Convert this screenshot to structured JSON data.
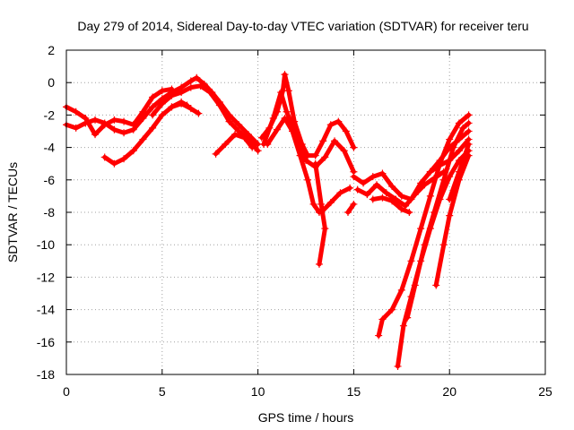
{
  "chart_data": {
    "type": "scatter",
    "title": "Day 279 of 2014, Sidereal Day-to-day VTEC variation (SDTVAR) for receiver teru",
    "xlabel": "GPS time / hours",
    "ylabel": "SDTVAR / TECUs",
    "xlim": [
      0,
      25
    ],
    "ylim": [
      -18,
      2
    ],
    "xticks": [
      "0",
      "5",
      "10",
      "15",
      "20",
      "25"
    ],
    "yticks": [
      "-18",
      "-16",
      "-14",
      "-12",
      "-10",
      "-8",
      "-6",
      "-4",
      "-2",
      "0",
      "2"
    ],
    "grid": true,
    "marker": "plus",
    "color": "#ff0000",
    "series": [
      {
        "points": [
          [
            0,
            -1.5
          ],
          [
            0.5,
            -1.8
          ],
          [
            1.0,
            -2.2
          ],
          [
            1.5,
            -3.2
          ],
          [
            2.0,
            -2.6
          ],
          [
            2.5,
            -2.3
          ],
          [
            3.0,
            -2.4
          ],
          [
            3.5,
            -2.6
          ],
          [
            4.0,
            -1.8
          ],
          [
            4.5,
            -0.9
          ],
          [
            5.0,
            -0.5
          ],
          [
            5.5,
            -0.4
          ]
        ]
      },
      {
        "points": [
          [
            0,
            -2.6
          ],
          [
            0.5,
            -2.8
          ],
          [
            1.0,
            -2.5
          ],
          [
            1.5,
            -2.3
          ],
          [
            2.0,
            -2.5
          ],
          [
            2.5,
            -2.9
          ],
          [
            3.0,
            -3.1
          ],
          [
            3.5,
            -2.9
          ],
          [
            4.0,
            -2.2
          ],
          [
            4.5,
            -1.5
          ],
          [
            5.0,
            -1.0
          ],
          [
            5.5,
            -0.6
          ],
          [
            6.0,
            -0.3
          ],
          [
            6.5,
            0.1
          ],
          [
            6.8,
            0.3
          ],
          [
            7.2,
            -0.1
          ],
          [
            7.6,
            -0.6
          ],
          [
            8.0,
            -1.2
          ],
          [
            8.5,
            -2.0
          ],
          [
            9.0,
            -2.6
          ],
          [
            9.5,
            -3.2
          ],
          [
            10.0,
            -3.8
          ]
        ]
      },
      {
        "points": [
          [
            2.0,
            -4.6
          ],
          [
            2.5,
            -5.0
          ],
          [
            3.0,
            -4.7
          ],
          [
            3.5,
            -4.2
          ],
          [
            4.0,
            -3.5
          ],
          [
            4.5,
            -2.8
          ],
          [
            5.0,
            -2.0
          ],
          [
            5.5,
            -1.5
          ],
          [
            6.0,
            -1.2
          ],
          [
            6.3,
            -1.4
          ]
        ]
      },
      {
        "points": [
          [
            4.5,
            -2.0
          ],
          [
            5.0,
            -1.3
          ],
          [
            5.5,
            -0.8
          ],
          [
            6.0,
            -0.6
          ],
          [
            6.5,
            -0.3
          ],
          [
            7.0,
            -0.2
          ],
          [
            7.5,
            -0.6
          ],
          [
            8.0,
            -1.4
          ],
          [
            8.5,
            -2.4
          ],
          [
            9.0,
            -3.0
          ],
          [
            9.5,
            -3.5
          ],
          [
            10.0,
            -4.2
          ]
        ]
      },
      {
        "points": [
          [
            5.5,
            -1.5
          ],
          [
            6.0,
            -1.3
          ],
          [
            6.5,
            -1.6
          ],
          [
            6.9,
            -1.9
          ]
        ]
      },
      {
        "points": [
          [
            7.8,
            -4.4
          ],
          [
            8.3,
            -3.8
          ],
          [
            8.8,
            -3.2
          ],
          [
            9.3,
            -3.4
          ],
          [
            9.7,
            -4.0
          ]
        ]
      },
      {
        "points": [
          [
            10.2,
            -3.4
          ],
          [
            10.6,
            -2.8
          ],
          [
            11.0,
            -1.8
          ],
          [
            11.3,
            -0.5
          ],
          [
            11.4,
            0.5
          ],
          [
            11.6,
            -0.5
          ],
          [
            11.9,
            -2.4
          ],
          [
            12.3,
            -3.8
          ],
          [
            12.6,
            -4.5
          ],
          [
            13.0,
            -4.5
          ],
          [
            13.4,
            -3.6
          ],
          [
            13.8,
            -2.6
          ],
          [
            14.2,
            -2.4
          ],
          [
            14.6,
            -3.0
          ],
          [
            15.0,
            -4.0
          ]
        ]
      },
      {
        "points": [
          [
            10.3,
            -3.8
          ],
          [
            10.8,
            -2.2
          ],
          [
            11.2,
            -0.6
          ],
          [
            11.5,
            -1.8
          ],
          [
            12.0,
            -3.2
          ],
          [
            12.5,
            -4.8
          ],
          [
            13.0,
            -5.2
          ],
          [
            13.5,
            -4.6
          ],
          [
            14.0,
            -3.6
          ],
          [
            14.5,
            -4.2
          ],
          [
            15.0,
            -5.5
          ]
        ]
      },
      {
        "points": [
          [
            10.5,
            -3.8
          ],
          [
            11.0,
            -2.9
          ],
          [
            11.4,
            -2.2
          ],
          [
            11.8,
            -3.0
          ],
          [
            12.2,
            -4.5
          ],
          [
            12.6,
            -6.0
          ],
          [
            12.9,
            -7.5
          ],
          [
            13.2,
            -8.0
          ]
        ]
      },
      {
        "points": [
          [
            13.0,
            -5.0
          ],
          [
            13.3,
            -7.5
          ],
          [
            13.5,
            -9.0
          ],
          [
            13.2,
            -11.2
          ]
        ]
      },
      {
        "points": [
          [
            13.3,
            -8.0
          ],
          [
            13.8,
            -7.4
          ],
          [
            14.3,
            -6.8
          ],
          [
            14.8,
            -6.5
          ]
        ]
      },
      {
        "points": [
          [
            14.7,
            -8.0
          ],
          [
            15.0,
            -7.5
          ]
        ]
      },
      {
        "points": [
          [
            15.0,
            -5.8
          ],
          [
            15.5,
            -6.2
          ],
          [
            16.0,
            -5.8
          ],
          [
            16.5,
            -5.6
          ],
          [
            17.0,
            -6.4
          ],
          [
            17.5,
            -7.0
          ],
          [
            18.0,
            -7.2
          ],
          [
            18.5,
            -6.2
          ],
          [
            19.0,
            -5.5
          ],
          [
            19.5,
            -5.1
          ],
          [
            20.0,
            -4.8
          ],
          [
            20.5,
            -4.2
          ],
          [
            21.0,
            -3.5
          ]
        ]
      },
      {
        "points": [
          [
            15.2,
            -6.6
          ],
          [
            15.7,
            -6.9
          ],
          [
            16.2,
            -6.3
          ],
          [
            16.7,
            -6.8
          ],
          [
            17.2,
            -7.2
          ],
          [
            17.7,
            -7.6
          ],
          [
            18.2,
            -6.9
          ],
          [
            18.7,
            -6.3
          ],
          [
            19.2,
            -5.9
          ],
          [
            19.7,
            -5.5
          ]
        ]
      },
      {
        "points": [
          [
            16.0,
            -7.2
          ],
          [
            16.5,
            -7.1
          ],
          [
            17.0,
            -7.3
          ],
          [
            17.5,
            -7.8
          ],
          [
            17.9,
            -8.0
          ]
        ]
      },
      {
        "points": [
          [
            16.3,
            -15.6
          ],
          [
            16.5,
            -14.6
          ],
          [
            17.0,
            -14.0
          ],
          [
            17.5,
            -12.8
          ],
          [
            18.0,
            -11.0
          ],
          [
            18.5,
            -9.0
          ],
          [
            19.0,
            -7.0
          ],
          [
            19.5,
            -5.0
          ],
          [
            20.0,
            -3.5
          ],
          [
            20.5,
            -2.5
          ],
          [
            21.0,
            -2.0
          ]
        ]
      },
      {
        "points": [
          [
            17.3,
            -17.5
          ],
          [
            17.6,
            -15.0
          ],
          [
            18.0,
            -13.2
          ],
          [
            18.5,
            -11.0
          ],
          [
            19.0,
            -9.0
          ],
          [
            19.5,
            -7.2
          ],
          [
            20.0,
            -5.8
          ],
          [
            20.5,
            -4.8
          ],
          [
            21.0,
            -4.2
          ]
        ]
      },
      {
        "points": [
          [
            17.8,
            -14.5
          ],
          [
            18.2,
            -12.5
          ],
          [
            18.7,
            -10.0
          ],
          [
            19.2,
            -8.0
          ],
          [
            19.7,
            -6.0
          ],
          [
            20.2,
            -4.0
          ],
          [
            20.7,
            -2.8
          ],
          [
            21.0,
            -2.5
          ]
        ]
      },
      {
        "points": [
          [
            19.3,
            -12.5
          ],
          [
            19.7,
            -10.0
          ],
          [
            20.0,
            -8.2
          ],
          [
            20.5,
            -6.0
          ],
          [
            21.0,
            -4.5
          ]
        ]
      },
      {
        "points": [
          [
            19.0,
            -5.5
          ],
          [
            19.5,
            -4.8
          ],
          [
            20.0,
            -4.0
          ],
          [
            20.5,
            -3.5
          ],
          [
            21.0,
            -3.0
          ]
        ]
      },
      {
        "points": [
          [
            20.0,
            -7.2
          ],
          [
            20.5,
            -5.5
          ],
          [
            21.0,
            -3.8
          ]
        ]
      }
    ]
  }
}
